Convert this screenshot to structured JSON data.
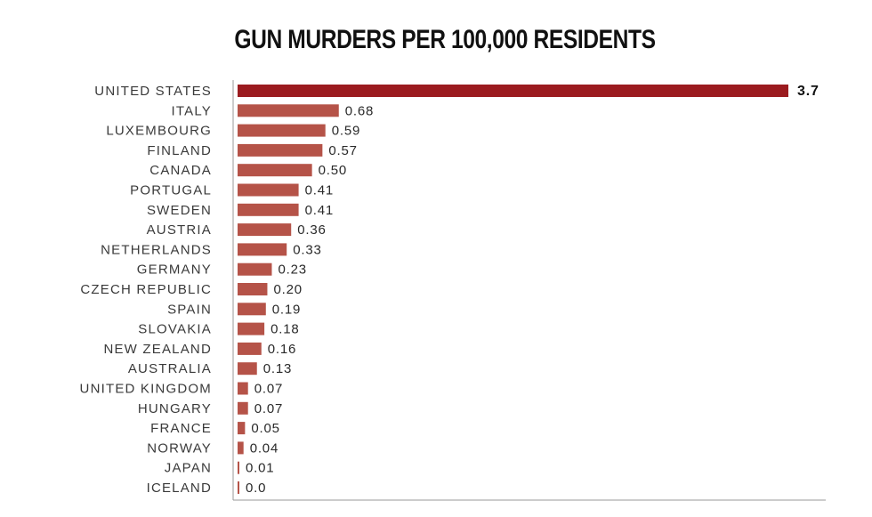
{
  "chart_data": {
    "type": "bar",
    "orientation": "horizontal",
    "title": "GUN MURDERS PER 100,000 RESIDENTS",
    "categories": [
      "UNITED STATES",
      "ITALY",
      "LUXEMBOURG",
      "FINLAND",
      "CANADA",
      "PORTUGAL",
      "SWEDEN",
      "AUSTRIA",
      "NETHERLANDS",
      "GERMANY",
      "CZECH REPUBLIC",
      "SPAIN",
      "SLOVAKIA",
      "NEW ZEALAND",
      "AUSTRALIA",
      "UNITED KINGDOM",
      "HUNGARY",
      "FRANCE",
      "NORWAY",
      "JAPAN",
      "ICELAND"
    ],
    "values": [
      3.7,
      0.68,
      0.59,
      0.57,
      0.5,
      0.41,
      0.41,
      0.36,
      0.33,
      0.23,
      0.2,
      0.19,
      0.18,
      0.16,
      0.13,
      0.07,
      0.07,
      0.05,
      0.04,
      0.01,
      0.0
    ],
    "value_labels": [
      "3.7",
      "0.68",
      "0.59",
      "0.57",
      "0.50",
      "0.41",
      "0.41",
      "0.36",
      "0.33",
      "0.23",
      "0.20",
      "0.19",
      "0.18",
      "0.16",
      "0.13",
      "0.07",
      "0.07",
      "0.05",
      "0.04",
      "0.01",
      "0.0"
    ],
    "xlim": [
      0,
      3.7
    ],
    "grid": false,
    "colors": {
      "highlight": "#9b1b1f",
      "bar": "#b55348",
      "axis": "#9a9a9a"
    }
  }
}
